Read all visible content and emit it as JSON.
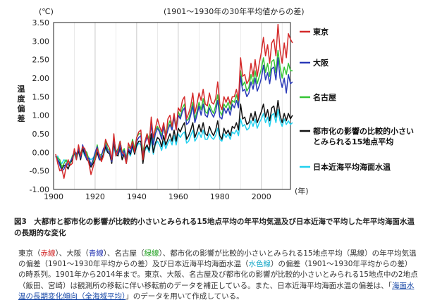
{
  "chart_data": {
    "type": "line",
    "unit_label": "(℃)",
    "subtitle": "(1901～1930年の30年平均値からの差)",
    "ylabel": "温度偏差",
    "xunit": "(年)",
    "xlim": [
      1900,
      2014
    ],
    "ylim": [
      -1.0,
      3.5
    ],
    "yticks": [
      "3.50",
      "3.00",
      "2.50",
      "2.00",
      "1.50",
      "1.00",
      "0.50",
      "0.00",
      "-0.50",
      "-1.00"
    ],
    "xticks": [
      "1900",
      "1920",
      "1940",
      "1960",
      "1980",
      "2000"
    ],
    "grid": "vertical",
    "legend_position": "right",
    "series": [
      {
        "name": "東京",
        "color": "#d42a2a",
        "values": [
          -0.05,
          -0.3,
          -0.5,
          -0.45,
          -0.7,
          -0.4,
          -0.2,
          -0.35,
          -0.3,
          0.1,
          -0.2,
          0.2,
          -0.1,
          0.15,
          0.1,
          -0.1,
          -0.3,
          -0.6,
          -0.4,
          -0.2,
          0.1,
          -0.05,
          -0.25,
          -0.1,
          0.35,
          0.2,
          0.1,
          -0.2,
          0.5,
          -0.1,
          0.05,
          0.3,
          0.0,
          -0.05,
          -0.3,
          0.25,
          0.1,
          0.3,
          0.0,
          0.4,
          0.55,
          0.6,
          -0.2,
          0.3,
          0.5,
          0.2,
          0.95,
          0.4,
          0.65,
          0.9,
          0.7,
          0.55,
          0.8,
          0.35,
          0.9,
          1.0,
          0.7,
          1.05,
          0.6,
          1.2,
          1.1,
          1.4,
          1.5,
          0.9,
          1.05,
          1.25,
          1.6,
          1.05,
          1.3,
          1.6,
          1.4,
          1.7,
          1.3,
          1.25,
          1.6,
          1.35,
          1.3,
          1.45,
          1.9,
          1.3,
          1.15,
          1.5,
          1.35,
          1.5,
          1.3,
          1.5,
          1.5,
          1.7,
          1.4,
          2.55,
          2.05,
          2.1,
          1.85,
          1.95,
          2.4,
          2.05,
          2.5,
          2.05,
          2.4,
          2.7,
          3.1,
          2.6,
          2.9,
          2.4,
          2.95,
          3.05,
          2.6,
          3.45,
          2.75,
          2.4,
          2.95,
          2.55,
          3.2,
          3.05,
          2.95
        ]
      },
      {
        "name": "大阪",
        "color": "#2a3ab8",
        "values": [
          -0.1,
          -0.2,
          -0.35,
          -0.5,
          -0.45,
          -0.3,
          -0.35,
          -0.25,
          -0.15,
          0.05,
          -0.05,
          0.1,
          -0.15,
          0.2,
          0.0,
          -0.2,
          -0.15,
          -0.35,
          -0.2,
          0.0,
          0.15,
          -0.2,
          -0.1,
          0.1,
          0.2,
          0.05,
          0.0,
          -0.25,
          0.35,
          0.05,
          -0.05,
          0.2,
          -0.1,
          0.05,
          -0.2,
          0.1,
          0.0,
          0.25,
          0.05,
          0.3,
          0.4,
          0.45,
          -0.1,
          0.25,
          0.4,
          0.3,
          0.75,
          0.2,
          0.5,
          0.65,
          0.55,
          0.35,
          0.7,
          0.4,
          0.6,
          0.75,
          0.6,
          0.95,
          0.6,
          1.0,
          0.9,
          1.1,
          1.2,
          0.75,
          0.8,
          1.0,
          1.25,
          0.8,
          1.0,
          1.25,
          1.0,
          1.3,
          1.0,
          0.95,
          1.2,
          1.05,
          0.95,
          1.1,
          1.4,
          0.95,
          0.9,
          1.2,
          1.05,
          1.2,
          1.0,
          1.3,
          1.2,
          1.4,
          1.2,
          2.05,
          1.65,
          1.7,
          1.5,
          1.6,
          1.9,
          1.7,
          2.0,
          1.65,
          1.8,
          2.0,
          2.35,
          1.95,
          2.15,
          1.85,
          2.25,
          2.3,
          1.95,
          2.55,
          2.0,
          1.75,
          2.0,
          1.6,
          2.1,
          1.85,
          1.9
        ]
      },
      {
        "name": "名古屋",
        "color": "#35c535",
        "values": [
          -0.1,
          -0.15,
          -0.2,
          -0.4,
          -0.3,
          -0.2,
          -0.3,
          -0.3,
          -0.1,
          0.0,
          -0.1,
          0.1,
          -0.05,
          0.15,
          0.05,
          0.0,
          -0.2,
          -0.3,
          -0.25,
          -0.1,
          0.2,
          -0.1,
          -0.05,
          0.0,
          0.3,
          0.1,
          0.05,
          -0.2,
          0.4,
          0.0,
          0.1,
          0.3,
          0.0,
          0.1,
          -0.15,
          0.15,
          0.1,
          0.35,
          0.1,
          0.4,
          0.5,
          0.5,
          0.0,
          0.3,
          0.5,
          0.35,
          0.8,
          0.3,
          0.6,
          0.7,
          0.6,
          0.45,
          0.75,
          0.5,
          0.7,
          0.85,
          0.65,
          1.0,
          0.7,
          1.1,
          0.95,
          1.2,
          1.3,
          0.85,
          0.9,
          1.1,
          1.35,
          0.9,
          1.1,
          1.35,
          1.15,
          1.45,
          1.1,
          1.05,
          1.3,
          1.15,
          1.05,
          1.25,
          1.55,
          1.1,
          1.0,
          1.3,
          1.2,
          1.35,
          1.15,
          1.4,
          1.35,
          1.55,
          1.3,
          2.2,
          1.8,
          1.9,
          1.65,
          1.75,
          2.1,
          1.85,
          2.2,
          1.85,
          2.05,
          2.25,
          2.55,
          2.15,
          2.4,
          2.05,
          2.45,
          2.5,
          2.15,
          2.75,
          2.3,
          2.0,
          2.3,
          2.1,
          2.4,
          2.2,
          2.2
        ]
      },
      {
        "name": "都市化の影響が比較的小さいとみられる15地点平均",
        "color": "#111111",
        "values": [
          -0.1,
          -0.2,
          -0.3,
          -0.45,
          -0.35,
          -0.35,
          -0.45,
          -0.3,
          -0.2,
          0.0,
          -0.15,
          0.05,
          -0.2,
          0.1,
          -0.05,
          -0.2,
          -0.25,
          -0.4,
          -0.3,
          -0.2,
          0.0,
          -0.2,
          -0.2,
          -0.05,
          0.15,
          0.0,
          -0.05,
          -0.3,
          0.25,
          -0.05,
          -0.1,
          0.15,
          -0.2,
          -0.05,
          -0.3,
          0.05,
          -0.05,
          0.2,
          -0.05,
          0.2,
          0.3,
          0.3,
          -0.3,
          0.1,
          0.2,
          0.05,
          0.5,
          0.0,
          0.25,
          0.4,
          0.35,
          0.15,
          0.45,
          0.2,
          0.35,
          0.5,
          0.3,
          0.6,
          0.3,
          0.65,
          0.55,
          0.7,
          0.8,
          0.35,
          0.45,
          0.6,
          0.8,
          0.4,
          0.55,
          0.75,
          0.55,
          0.8,
          0.5,
          0.45,
          0.7,
          0.55,
          0.45,
          0.6,
          0.85,
          0.45,
          0.35,
          0.65,
          0.5,
          0.6,
          0.45,
          0.7,
          0.65,
          0.8,
          0.6,
          1.3,
          0.9,
          0.95,
          0.75,
          0.8,
          1.05,
          0.85,
          1.1,
          0.8,
          0.95,
          1.1,
          1.3,
          0.95,
          1.15,
          0.85,
          1.2,
          1.25,
          0.95,
          1.4,
          1.0,
          0.8,
          1.05,
          0.85,
          1.05,
          0.9,
          1.0
        ]
      },
      {
        "name": "日本近海平均海面水温",
        "color": "#22d0ee",
        "values": [
          -0.15,
          -0.1,
          -0.25,
          -0.3,
          -0.2,
          -0.25,
          -0.3,
          -0.25,
          -0.15,
          -0.05,
          -0.2,
          0.0,
          -0.1,
          0.05,
          -0.1,
          -0.05,
          -0.15,
          -0.2,
          -0.15,
          -0.1,
          0.05,
          -0.15,
          -0.15,
          -0.1,
          0.1,
          0.0,
          -0.05,
          -0.2,
          0.15,
          -0.1,
          -0.05,
          0.05,
          -0.1,
          -0.05,
          -0.2,
          0.0,
          -0.1,
          0.15,
          -0.05,
          0.15,
          0.25,
          0.2,
          -0.15,
          0.05,
          0.15,
          0.0,
          0.35,
          -0.05,
          0.2,
          0.3,
          0.2,
          0.05,
          0.3,
          0.1,
          0.25,
          0.35,
          0.2,
          0.45,
          0.2,
          0.5,
          0.4,
          0.5,
          0.55,
          0.25,
          0.3,
          0.45,
          0.6,
          0.3,
          0.4,
          0.55,
          0.4,
          0.6,
          0.35,
          0.35,
          0.5,
          0.4,
          0.35,
          0.45,
          0.65,
          0.35,
          0.3,
          0.5,
          0.4,
          0.5,
          0.35,
          0.55,
          0.5,
          0.6,
          0.45,
          0.9,
          0.7,
          0.75,
          0.6,
          0.65,
          0.85,
          0.7,
          0.9,
          0.65,
          0.8,
          0.9,
          1.05,
          0.8,
          0.95,
          0.7,
          1.0,
          1.05,
          0.8,
          1.15,
          0.85,
          0.7,
          0.9,
          0.75,
          0.85,
          0.75,
          0.8
        ]
      }
    ]
  },
  "caption": "図3　大都市と都市化の影響が比較的小さいとみられる15地点平均の年平均気温及び日本近海で平均した年平均海面水温の長期的な変化",
  "description": {
    "p1": "東京（",
    "c_red": "赤線",
    "p2": "）、大阪（",
    "c_blue": "青線",
    "p3": "）、名古屋（",
    "c_green": "緑線",
    "p4": "）、都市化の影響が比較的小さいとみられる15地点平均（黒線）の年平均気温の偏差（1901～1930年平均からの差）及び日本近海平均海面水温（",
    "c_cyan": "水色線",
    "p5": "）の偏差（1901～1930年平均からの差）の時系列。1901年から2014年まで。東京、大阪、名古屋及び都市化の影響が比較的小さいとみられる15地点中の2地点（飯田、宮崎）は観測所の移転に伴い移転前のデータを補正している。また、日本近海平均海面水温の偏差は、「",
    "link": "海面水温の長期変化傾向（全海域平均）",
    "p6": "」のデータを用いて作成している。"
  }
}
